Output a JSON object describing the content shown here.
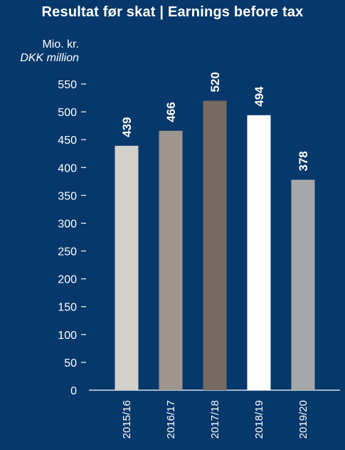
{
  "chart_data": {
    "type": "bar",
    "title": "Resultat før skat | Earnings before tax",
    "unit_label_da": "Mio. kr.",
    "unit_label_en": "DKK million",
    "categories": [
      "2015/16",
      "2016/17",
      "2017/18",
      "2018/19",
      "2019/20"
    ],
    "values": [
      439,
      466,
      520,
      494,
      378
    ],
    "data_labels": [
      "439",
      "466",
      "520",
      "494",
      "378"
    ],
    "bar_colors": [
      "#d3d1cc",
      "#9e958f",
      "#766a63",
      "#ffffff",
      "#a6a7a8"
    ],
    "yticks": [
      0,
      50,
      100,
      150,
      200,
      250,
      300,
      350,
      400,
      450,
      500,
      550
    ],
    "ytick_labels": [
      "0",
      "50",
      "100",
      "150",
      "200",
      "250",
      "300",
      "350",
      "400",
      "450",
      "500",
      "550"
    ],
    "ylim": [
      0,
      550
    ],
    "grid": false,
    "background": "#06386b"
  }
}
